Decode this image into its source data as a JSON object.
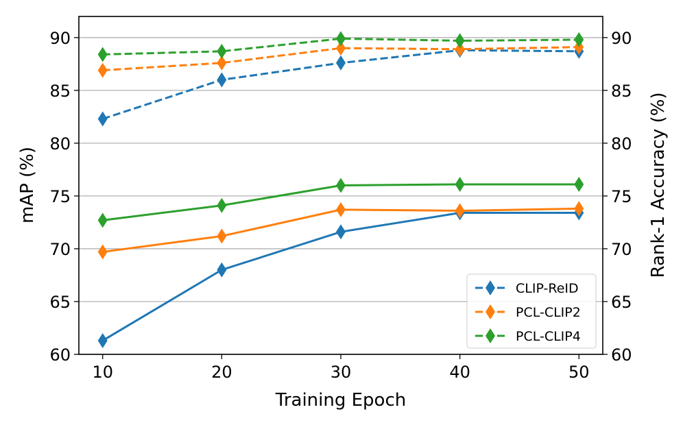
{
  "chart_data": {
    "type": "line",
    "xlabel": "Training Epoch",
    "ylabel_left": "mAP (%)",
    "ylabel_right": "Rank-1 Accuracy (%)",
    "x": [
      10,
      20,
      30,
      40,
      50
    ],
    "xlim": [
      8,
      52
    ],
    "ylim": [
      60,
      92
    ],
    "yticks": [
      60,
      65,
      70,
      75,
      80,
      85,
      90
    ],
    "grid": "horizontal",
    "legend_position": "lower-right",
    "series": [
      {
        "name": "CLIP-ReID",
        "color": "#1f77b4",
        "map": [
          61.3,
          68.0,
          71.6,
          73.4,
          73.4
        ],
        "rank1": [
          82.3,
          86.0,
          87.6,
          88.8,
          88.7
        ]
      },
      {
        "name": "PCL-CLIP2",
        "color": "#ff7f0e",
        "map": [
          69.7,
          71.2,
          73.7,
          73.6,
          73.8
        ],
        "rank1": [
          86.9,
          87.6,
          89.0,
          88.9,
          89.1
        ]
      },
      {
        "name": "PCL-CLIP4",
        "color": "#2ca02c",
        "map": [
          72.7,
          74.1,
          76.0,
          76.1,
          76.1
        ],
        "rank1": [
          88.4,
          88.7,
          89.9,
          89.7,
          89.8
        ]
      }
    ]
  }
}
